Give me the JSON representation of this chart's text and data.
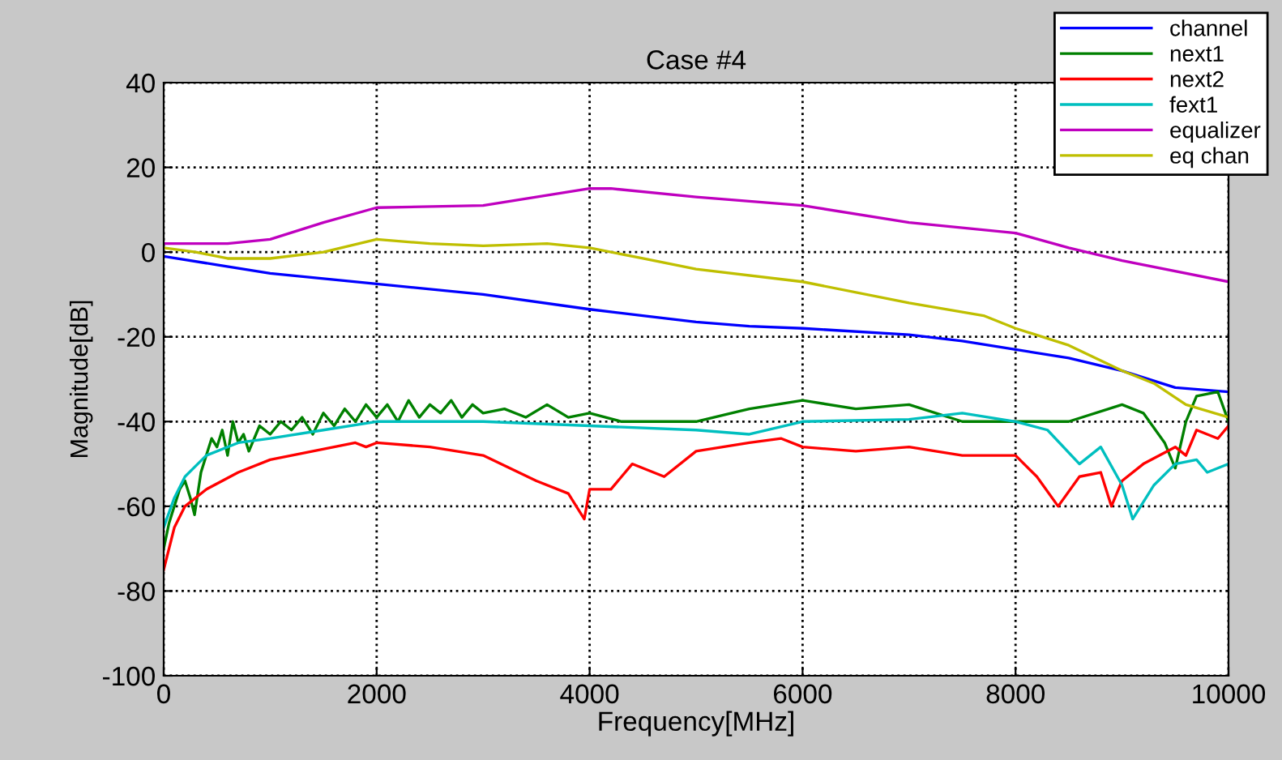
{
  "chart_data": {
    "type": "line",
    "title": "Case #4",
    "xlabel": "Frequency[MHz]",
    "ylabel": "Magnitude[dB]",
    "xlim": [
      0,
      10000
    ],
    "ylim": [
      -100,
      40
    ],
    "xticks": [
      0,
      2000,
      4000,
      6000,
      8000,
      10000
    ],
    "yticks": [
      -100,
      -80,
      -60,
      -40,
      -20,
      0,
      20,
      40
    ],
    "grid": true,
    "legend": "top right",
    "series": [
      {
        "name": "channel",
        "color": "#0000ff",
        "x": [
          0,
          500,
          1000,
          2000,
          3000,
          4000,
          4500,
          5000,
          5500,
          6000,
          7000,
          7500,
          8000,
          8500,
          9000,
          9500,
          10000
        ],
        "values": [
          -1,
          -3,
          -5,
          -7.5,
          -10,
          -13.5,
          -15,
          -16.5,
          -17.5,
          -18,
          -19.5,
          -21,
          -23,
          -25,
          -28,
          -32,
          -33
        ]
      },
      {
        "name": "next1",
        "color": "#008000",
        "x": [
          0,
          50,
          100,
          150,
          200,
          250,
          290,
          350,
          400,
          450,
          500,
          550,
          600,
          650,
          700,
          750,
          800,
          900,
          1000,
          1100,
          1200,
          1300,
          1400,
          1500,
          1600,
          1700,
          1800,
          1900,
          2000,
          2100,
          2200,
          2300,
          2400,
          2500,
          2600,
          2700,
          2800,
          2900,
          3000,
          3200,
          3400,
          3600,
          3800,
          4000,
          4300,
          4600,
          5000,
          5500,
          6000,
          6500,
          7000,
          7500,
          8000,
          8500,
          9000,
          9200,
          9400,
          9500,
          9600,
          9700,
          9900,
          10000
        ],
        "values": [
          -70,
          -64,
          -60,
          -56,
          -54,
          -58,
          -62,
          -52,
          -48,
          -44,
          -46,
          -42,
          -48,
          -40,
          -45,
          -43,
          -47,
          -41,
          -43,
          -40,
          -42,
          -39,
          -43,
          -38,
          -41,
          -37,
          -40,
          -36,
          -39,
          -36,
          -40,
          -35,
          -39,
          -36,
          -38,
          -35,
          -39,
          -36,
          -38,
          -37,
          -39,
          -36,
          -39,
          -38,
          -40,
          -40,
          -40,
          -37,
          -35,
          -37,
          -36,
          -40,
          -40,
          -40,
          -36,
          -38,
          -45,
          -51,
          -40,
          -34,
          -33,
          -40
        ]
      },
      {
        "name": "next2",
        "color": "#ff0000",
        "x": [
          0,
          100,
          200,
          400,
          700,
          1000,
          1400,
          1800,
          1900,
          2000,
          2500,
          3000,
          3500,
          3800,
          3950,
          4000,
          4200,
          4300,
          4400,
          4600,
          4700,
          5000,
          5500,
          5800,
          6000,
          6500,
          7000,
          7500,
          8000,
          8200,
          8400,
          8600,
          8800,
          8900,
          9000,
          9200,
          9500,
          9600,
          9700,
          9900,
          10000
        ],
        "values": [
          -75,
          -65,
          -60,
          -56,
          -52,
          -49,
          -47,
          -45,
          -46,
          -45,
          -46,
          -48,
          -54,
          -57,
          -63,
          -56,
          -56,
          -53,
          -50,
          -52,
          -53,
          -47,
          -45,
          -44,
          -46,
          -47,
          -46,
          -48,
          -48,
          -53,
          -60,
          -53,
          -52,
          -60,
          -54,
          -50,
          -46,
          -48,
          -42,
          -44,
          -41
        ]
      },
      {
        "name": "fext1",
        "color": "#00bfbf",
        "x": [
          0,
          100,
          200,
          400,
          700,
          1000,
          1500,
          2000,
          3000,
          4000,
          5000,
          5500,
          6000,
          7000,
          7500,
          8000,
          8300,
          8600,
          8800,
          9000,
          9100,
          9300,
          9500,
          9700,
          9800,
          10000
        ],
        "values": [
          -65,
          -58,
          -53,
          -48,
          -45,
          -44,
          -42,
          -40,
          -40,
          -41,
          -42,
          -43,
          -40,
          -39.5,
          -38,
          -40,
          -42,
          -50,
          -46,
          -55,
          -63,
          -55,
          -50,
          -49,
          -52,
          -50
        ]
      },
      {
        "name": "equalizer",
        "color": "#bf00bf",
        "x": [
          0,
          600,
          1000,
          1500,
          2000,
          3000,
          3500,
          4000,
          4200,
          5000,
          6000,
          7000,
          8000,
          8500,
          9000,
          10000
        ],
        "values": [
          2,
          2,
          3,
          7,
          10.5,
          11,
          13,
          15,
          15,
          13,
          11,
          7,
          4.5,
          1,
          -2,
          -7
        ]
      },
      {
        "name": "eq chan",
        "color": "#bfbf00",
        "x": [
          0,
          300,
          600,
          1000,
          1500,
          2000,
          2500,
          3000,
          3600,
          4000,
          4500,
          5000,
          6000,
          7000,
          7700,
          8000,
          8500,
          9000,
          9300,
          9600,
          10000
        ],
        "values": [
          1,
          0,
          -1.5,
          -1.5,
          0,
          3,
          2,
          1.5,
          2,
          1,
          -1.5,
          -4,
          -7,
          -12,
          -15,
          -18,
          -22,
          -28,
          -31,
          -36,
          -39
        ]
      }
    ]
  }
}
